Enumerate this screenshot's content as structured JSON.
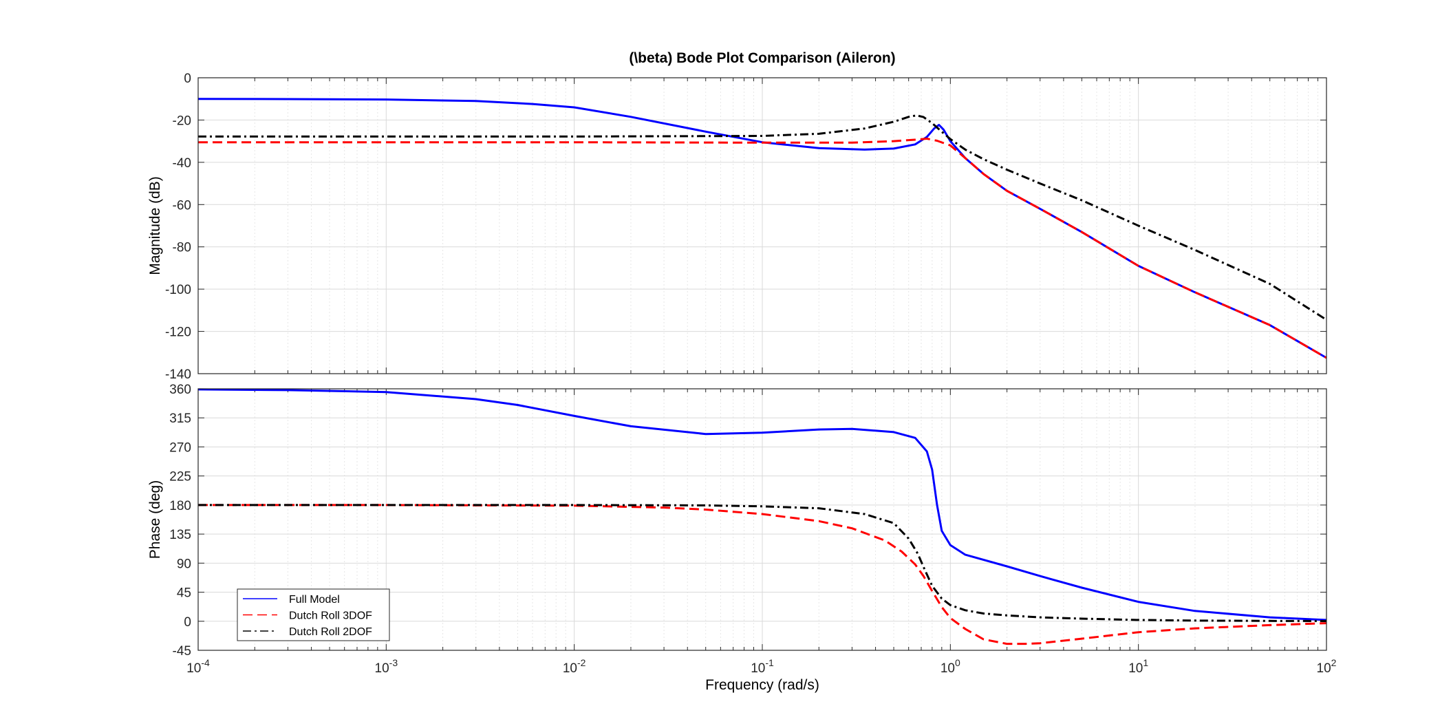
{
  "chart_data": {
    "type": "line",
    "title": "(\\beta) Bode Plot Comparison (Aileron)",
    "xlabel": "Frequency  (rad/s)",
    "xscale": "log",
    "xlim": [
      0.0001,
      100
    ],
    "x_tick_labels": [
      {
        "base": "10",
        "exp": "-4"
      },
      {
        "base": "10",
        "exp": "-3"
      },
      {
        "base": "10",
        "exp": "-2"
      },
      {
        "base": "10",
        "exp": "-1"
      },
      {
        "base": "10",
        "exp": "0"
      },
      {
        "base": "10",
        "exp": "1"
      },
      {
        "base": "10",
        "exp": "2"
      }
    ],
    "grid": true,
    "legend": {
      "placement": "bottom-left",
      "entries": [
        "Full Model",
        "Dutch Roll 3DOF",
        "Dutch Roll 2DOF"
      ]
    },
    "series_styles": [
      {
        "name": "Full Model",
        "color": "#0000ff",
        "dash": "solid"
      },
      {
        "name": "Dutch Roll 3DOF",
        "color": "#ff0000",
        "dash": "dashed"
      },
      {
        "name": "Dutch Roll 2DOF",
        "color": "#000000",
        "dash": "dashdot"
      }
    ],
    "panels": [
      {
        "name": "magnitude",
        "ylabel": "Magnitude (dB)",
        "ylim": [
          -140,
          0
        ],
        "yticks": [
          0,
          -20,
          -40,
          -60,
          -80,
          -100,
          -120,
          -140
        ],
        "series": [
          {
            "name": "Full Model",
            "points": [
              [
                0.0001,
                -10
              ],
              [
                0.0003,
                -10.1
              ],
              [
                0.001,
                -10.3
              ],
              [
                0.003,
                -11
              ],
              [
                0.006,
                -12.4
              ],
              [
                0.01,
                -14
              ],
              [
                0.02,
                -18.5
              ],
              [
                0.05,
                -25.5
              ],
              [
                0.1,
                -30.5
              ],
              [
                0.2,
                -33.3
              ],
              [
                0.35,
                -34
              ],
              [
                0.5,
                -33.5
              ],
              [
                0.65,
                -31.5
              ],
              [
                0.75,
                -28
              ],
              [
                0.82,
                -24
              ],
              [
                0.87,
                -22.3
              ],
              [
                0.92,
                -24.5
              ],
              [
                1.0,
                -30
              ],
              [
                1.2,
                -38
              ],
              [
                1.5,
                -45.5
              ],
              [
                2,
                -53.5
              ],
              [
                3,
                -62
              ],
              [
                5,
                -73
              ],
              [
                10,
                -89
              ],
              [
                20,
                -101.5
              ],
              [
                50,
                -117
              ],
              [
                100,
                -132.5
              ]
            ]
          },
          {
            "name": "Dutch Roll 3DOF",
            "points": [
              [
                0.0001,
                -30.5
              ],
              [
                0.001,
                -30.5
              ],
              [
                0.01,
                -30.5
              ],
              [
                0.1,
                -30.7
              ],
              [
                0.3,
                -30.7
              ],
              [
                0.5,
                -30
              ],
              [
                0.65,
                -29.3
              ],
              [
                0.75,
                -28.8
              ],
              [
                0.85,
                -29.8
              ],
              [
                1.0,
                -32
              ],
              [
                1.2,
                -38
              ],
              [
                1.5,
                -45.5
              ],
              [
                2,
                -53.5
              ],
              [
                3,
                -62
              ],
              [
                5,
                -73
              ],
              [
                10,
                -89
              ],
              [
                20,
                -101.5
              ],
              [
                50,
                -117
              ],
              [
                100,
                -132.5
              ]
            ]
          },
          {
            "name": "Dutch Roll 2DOF",
            "points": [
              [
                0.0001,
                -27.8
              ],
              [
                0.001,
                -27.8
              ],
              [
                0.01,
                -27.8
              ],
              [
                0.1,
                -27.5
              ],
              [
                0.2,
                -26.5
              ],
              [
                0.35,
                -24
              ],
              [
                0.5,
                -20.8
              ],
              [
                0.6,
                -18.5
              ],
              [
                0.66,
                -17.8
              ],
              [
                0.72,
                -18.6
              ],
              [
                0.8,
                -21.5
              ],
              [
                0.9,
                -25.5
              ],
              [
                1.0,
                -29
              ],
              [
                1.2,
                -34
              ],
              [
                1.5,
                -38.5
              ],
              [
                2,
                -43.5
              ],
              [
                3,
                -50
              ],
              [
                5,
                -58
              ],
              [
                10,
                -70
              ],
              [
                20,
                -81.5
              ],
              [
                50,
                -97.5
              ],
              [
                100,
                -114.5
              ]
            ]
          }
        ]
      },
      {
        "name": "phase",
        "ylabel": "Phase (deg)",
        "ylim": [
          -45,
          360
        ],
        "yticks": [
          360,
          315,
          270,
          225,
          180,
          135,
          90,
          45,
          0,
          -45
        ],
        "series": [
          {
            "name": "Full Model",
            "points": [
              [
                0.0001,
                359
              ],
              [
                0.0003,
                358
              ],
              [
                0.001,
                355
              ],
              [
                0.003,
                344
              ],
              [
                0.005,
                335
              ],
              [
                0.01,
                318
              ],
              [
                0.02,
                302
              ],
              [
                0.05,
                290
              ],
              [
                0.1,
                292
              ],
              [
                0.2,
                297
              ],
              [
                0.3,
                298
              ],
              [
                0.5,
                293
              ],
              [
                0.65,
                284
              ],
              [
                0.75,
                263
              ],
              [
                0.8,
                235
              ],
              [
                0.85,
                180
              ],
              [
                0.9,
                140
              ],
              [
                1.0,
                118
              ],
              [
                1.2,
                103
              ],
              [
                2,
                85
              ],
              [
                3,
                70
              ],
              [
                5,
                52
              ],
              [
                10,
                30
              ],
              [
                20,
                16
              ],
              [
                50,
                6
              ],
              [
                100,
                2
              ]
            ]
          },
          {
            "name": "Dutch Roll 3DOF",
            "points": [
              [
                0.0001,
                180
              ],
              [
                0.001,
                180
              ],
              [
                0.01,
                179
              ],
              [
                0.03,
                176
              ],
              [
                0.05,
                173
              ],
              [
                0.1,
                166
              ],
              [
                0.2,
                155
              ],
              [
                0.3,
                144
              ],
              [
                0.45,
                125
              ],
              [
                0.55,
                108
              ],
              [
                0.65,
                88
              ],
              [
                0.72,
                70
              ],
              [
                0.8,
                47
              ],
              [
                0.9,
                22
              ],
              [
                1.0,
                5
              ],
              [
                1.2,
                -12
              ],
              [
                1.5,
                -28
              ],
              [
                2,
                -35
              ],
              [
                2.5,
                -35
              ],
              [
                3,
                -34
              ],
              [
                5,
                -27
              ],
              [
                10,
                -17
              ],
              [
                20,
                -11
              ],
              [
                50,
                -6
              ],
              [
                100,
                -3
              ]
            ]
          },
          {
            "name": "Dutch Roll 2DOF",
            "points": [
              [
                0.0001,
                180
              ],
              [
                0.001,
                180
              ],
              [
                0.01,
                180
              ],
              [
                0.05,
                179.5
              ],
              [
                0.1,
                178
              ],
              [
                0.2,
                175
              ],
              [
                0.35,
                166
              ],
              [
                0.5,
                152
              ],
              [
                0.6,
                128
              ],
              [
                0.67,
                105
              ],
              [
                0.73,
                80
              ],
              [
                0.8,
                55
              ],
              [
                0.9,
                35
              ],
              [
                1.0,
                25
              ],
              [
                1.2,
                17
              ],
              [
                1.5,
                12
              ],
              [
                2,
                9
              ],
              [
                3,
                6
              ],
              [
                5,
                4
              ],
              [
                10,
                2
              ],
              [
                20,
                1
              ],
              [
                50,
                0.5
              ],
              [
                100,
                0.3
              ]
            ]
          }
        ]
      }
    ]
  }
}
